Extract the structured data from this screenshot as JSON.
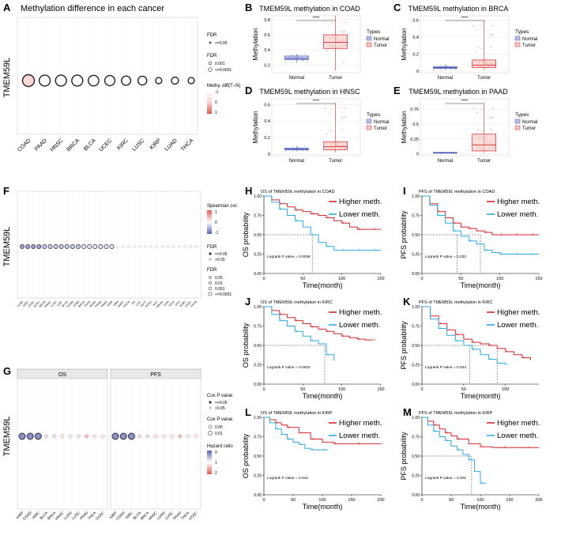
{
  "colors": {
    "grid": "#e6e6e6",
    "normal_fill": "#b9bde6",
    "normal_stroke": "#4b5bb4",
    "tumor_fill": "#f6c9c4",
    "tumor_stroke": "#d7262a",
    "higher": "#d7262a",
    "lower": "#29abe2",
    "ring": "#222222",
    "pos_blue": "#5a63b8",
    "neg_red": "#e8564f",
    "sig_col": "#333333",
    "nonsig_col": "#bdbdbd"
  },
  "panelA": {
    "letter": "A",
    "title": "Methylation difference in each cancer",
    "ylabel": "TMEM59L",
    "legend_fdr1_title": "FDR",
    "legend_fdr1_items": [
      "<=0.05"
    ],
    "legend_fdr2_title": "FDR",
    "legend_fdr2_items": [
      "0.001",
      "<=0.0001"
    ],
    "legend_grad_title": "Methy. diff(T–N)",
    "legend_grad_ticks": [
      "-1",
      "0",
      "1"
    ]
  },
  "panelF": {
    "letter": "F",
    "ylabel": "TMEM59L",
    "legend_spear_title": "Spearman cor.",
    "legend_spear_ticks": [
      "1",
      "0",
      "-1"
    ],
    "legend_fdr1_title": "FDR",
    "legend_fdr1_items": [
      "<=0.05",
      ">0.05"
    ],
    "legend_fdr2_title": "FDR",
    "legend_fdr2_items": [
      "0.05",
      "0.01",
      "0.001",
      "<=0.0001"
    ]
  },
  "panelG": {
    "letter": "G",
    "ylabel": "TMEM59L",
    "facet_os": "OS",
    "facet_pfs": "PFS",
    "legend_cox1_title": "Cox P value",
    "legend_cox1_items": [
      "<=0.05",
      ">0.05"
    ],
    "legend_cox2_title": "Cox P value",
    "legend_cox2_items": [
      "0.05",
      "0.01"
    ],
    "legend_hr_title": "Hazard ratio",
    "legend_hr_ticks": [
      "0",
      "1",
      "2"
    ]
  },
  "chart_data": [
    {
      "id": "A",
      "type": "scatter",
      "title": "Methylation difference in each cancer",
      "categories": [
        "COAD",
        "PAAD",
        "HNSC",
        "BRCA",
        "BLCA",
        "UCEC",
        "KIRC",
        "LUSC",
        "KIRP",
        "LUAD",
        "THCA"
      ],
      "methy_diff": [
        0.3,
        0.0,
        0.0,
        0.0,
        0.0,
        0.0,
        0.0,
        0.0,
        0.0,
        0.0,
        0.0
      ],
      "size_rank": [
        1.0,
        0.9,
        0.9,
        0.9,
        0.85,
        0.8,
        0.7,
        0.65,
        0.35,
        0.45,
        0.35
      ],
      "ylabel": "TMEM59L"
    },
    {
      "id": "B",
      "type": "boxplot",
      "title": "TMEM59L methylation in COAD",
      "significance": "****",
      "ylabel": "Methylation",
      "groups": [
        "Normal",
        "Tumor"
      ],
      "normal": {
        "min": 0.23,
        "q1": 0.27,
        "median": 0.29,
        "q3": 0.32,
        "max": 0.35
      },
      "tumor": {
        "min": 0.13,
        "q1": 0.42,
        "median": 0.5,
        "q3": 0.6,
        "max": 0.85
      },
      "ylim": [
        0.1,
        0.85
      ],
      "yticks": [
        0.2,
        0.4,
        0.6,
        0.8
      ],
      "legend_title": "Types",
      "legend": [
        "Normal",
        "Tumor"
      ]
    },
    {
      "id": "C",
      "type": "boxplot",
      "title": "TMEM59L methylation in BRCA",
      "significance": "****",
      "ylabel": "Methylation",
      "groups": [
        "Normal",
        "Tumor"
      ],
      "normal": {
        "min": 0.01,
        "q1": 0.03,
        "median": 0.04,
        "q3": 0.05,
        "max": 0.08
      },
      "tumor": {
        "min": 0.01,
        "q1": 0.04,
        "median": 0.07,
        "q3": 0.13,
        "max": 0.6
      },
      "ylim": [
        -0.02,
        0.65
      ],
      "yticks": [
        0.0,
        0.2,
        0.4,
        0.6
      ],
      "legend_title": "Types",
      "legend": [
        "Normal",
        "Tumor"
      ]
    },
    {
      "id": "D",
      "type": "boxplot",
      "title": "TMEM59L methylation in HNSC",
      "significance": "****",
      "ylabel": "Methylation",
      "groups": [
        "Normal",
        "Tumor"
      ],
      "normal": {
        "min": 0.03,
        "q1": 0.05,
        "median": 0.06,
        "q3": 0.07,
        "max": 0.1
      },
      "tumor": {
        "min": 0.02,
        "q1": 0.05,
        "median": 0.09,
        "q3": 0.15,
        "max": 0.62
      },
      "ylim": [
        -0.02,
        0.67
      ],
      "yticks": [
        0.0,
        0.2,
        0.4,
        0.6
      ],
      "legend_title": "Types",
      "legend": [
        "Normal",
        "Tumor"
      ]
    },
    {
      "id": "E",
      "type": "boxplot",
      "title": "TMEM59L methylation in PAAD",
      "significance": "****",
      "ylabel": "Methylation",
      "groups": [
        "Normal",
        "Tumor"
      ],
      "normal": {
        "min": 0.01,
        "q1": 0.015,
        "median": 0.02,
        "q3": 0.025,
        "max": 0.03
      },
      "tumor": {
        "min": 0.02,
        "q1": 0.05,
        "median": 0.15,
        "q3": 0.33,
        "max": 0.85
      },
      "ylim": [
        -0.03,
        0.92
      ],
      "yticks": [
        0.0,
        0.25,
        0.5,
        0.75
      ],
      "legend_title": "Types",
      "legend": [
        "Normal",
        "Tumor"
      ]
    },
    {
      "id": "F",
      "type": "scatter",
      "categories": [
        "LUAD",
        "KIRC",
        "CESC",
        "UCEC",
        "SKCM",
        "HNSC",
        "LUSC",
        "LIHC",
        "BLCA",
        "COAD",
        "STAD",
        "BRCA",
        "THCA",
        "READ",
        "PRAD",
        "PAAD",
        "KIRP",
        "GBM",
        "SARC",
        "ESCA",
        "OV",
        "LGG",
        "TGCT",
        "PCPG",
        "ACC",
        "MESO",
        "UVM",
        "KICH",
        "UCS",
        "DLBC",
        "CHOL",
        "THYM"
      ],
      "spearman": [
        0.5,
        0.45,
        0.4,
        0.35,
        0.3,
        0.3,
        0.25,
        0.2,
        0.2,
        0.15,
        0.15,
        0.1,
        0.1,
        0.1,
        0.05,
        0.05,
        0.05,
        0,
        0,
        0,
        0,
        0,
        0,
        0,
        0,
        0,
        0,
        0,
        0,
        0,
        0,
        0
      ],
      "significant": [
        true,
        true,
        true,
        true,
        true,
        true,
        true,
        true,
        true,
        true,
        true,
        true,
        true,
        true,
        true,
        true,
        true,
        false,
        false,
        false,
        false,
        false,
        false,
        false,
        false,
        false,
        false,
        false,
        false,
        false,
        false,
        false
      ],
      "ylabel": "TMEM59L"
    },
    {
      "id": "G",
      "type": "scatter",
      "facets": [
        {
          "name": "OS",
          "categories": [
            "KIRP",
            "COAD",
            "KIRC",
            "BLCA",
            "BRCA",
            "HNSC",
            "LUAD",
            "LUSC",
            "PAAD",
            "THCA",
            "UCEC"
          ],
          "hazard_ratio": [
            0.3,
            0.35,
            0.4,
            0.9,
            0.95,
            1.0,
            1.0,
            1.0,
            1.3,
            1.05,
            1.1
          ],
          "significant": [
            true,
            true,
            true,
            false,
            false,
            false,
            false,
            false,
            false,
            false,
            false
          ]
        },
        {
          "name": "PFS",
          "categories": [
            "KIRP",
            "COAD",
            "KIRC",
            "BLCA",
            "BRCA",
            "HNSC",
            "LUAD",
            "LUSC",
            "PAAD",
            "THCA",
            "UCEC"
          ],
          "hazard_ratio": [
            0.3,
            0.35,
            0.4,
            0.9,
            0.95,
            1.0,
            1.0,
            1.0,
            1.2,
            1.05,
            1.1
          ],
          "significant": [
            true,
            true,
            true,
            false,
            false,
            false,
            false,
            false,
            false,
            false,
            false
          ]
        }
      ],
      "ylabel": "TMEM59L"
    },
    {
      "id": "H",
      "type": "line",
      "title": "OS of TMEM59L methylation in COAD",
      "pvalue_text": "Logrank P value = 0.0036",
      "xlabel": "Time(month)",
      "ylabel": "OS probability",
      "xlim": [
        0,
        150
      ],
      "xticks": [
        0,
        50,
        100,
        150
      ],
      "yticks": [
        0,
        0.25,
        0.5,
        0.75,
        1.0
      ],
      "median_lines": [
        62
      ],
      "series": [
        {
          "name": "Higher meth.",
          "x": [
            0,
            10,
            20,
            30,
            40,
            50,
            60,
            70,
            80,
            90,
            100,
            110,
            120,
            130,
            140,
            150
          ],
          "y": [
            1.0,
            0.95,
            0.9,
            0.86,
            0.82,
            0.8,
            0.77,
            0.75,
            0.72,
            0.68,
            0.65,
            0.6,
            0.57,
            0.57,
            0.57,
            0.57
          ]
        },
        {
          "name": "Lower meth.",
          "x": [
            0,
            10,
            20,
            30,
            40,
            50,
            60,
            70,
            80,
            90,
            100,
            110,
            120,
            130,
            140,
            150
          ],
          "y": [
            1.0,
            0.92,
            0.83,
            0.75,
            0.68,
            0.6,
            0.5,
            0.4,
            0.35,
            0.3,
            0.3,
            0.3,
            0.3,
            0.3,
            0.3,
            0.3
          ]
        }
      ]
    },
    {
      "id": "I",
      "type": "line",
      "title": "PFS of TMEM59L methylation in COAD",
      "pvalue_text": "Logrank P value = 0.032",
      "xlabel": "Time(month)",
      "ylabel": "PFS probability",
      "xlim": [
        0,
        150
      ],
      "xticks": [
        0,
        50,
        100,
        150
      ],
      "yticks": [
        0,
        0.25,
        0.5,
        0.75,
        1.0
      ],
      "median_lines": [
        45,
        75
      ],
      "series": [
        {
          "name": "Higher meth.",
          "x": [
            0,
            10,
            20,
            30,
            40,
            50,
            60,
            70,
            80,
            90,
            100,
            110,
            120,
            130,
            140,
            150
          ],
          "y": [
            1.0,
            0.9,
            0.8,
            0.72,
            0.65,
            0.6,
            0.58,
            0.55,
            0.53,
            0.5,
            0.5,
            0.5,
            0.5,
            0.5,
            0.5,
            0.5
          ]
        },
        {
          "name": "Lower meth.",
          "x": [
            0,
            10,
            20,
            30,
            40,
            50,
            60,
            70,
            80,
            90,
            100,
            110,
            120,
            130,
            140,
            150
          ],
          "y": [
            1.0,
            0.88,
            0.75,
            0.65,
            0.55,
            0.48,
            0.42,
            0.38,
            0.3,
            0.27,
            0.25,
            0.25,
            0.25,
            0.25,
            0.25,
            0.25
          ]
        }
      ]
    },
    {
      "id": "J",
      "type": "line",
      "title": "OS of TMEM59L methylation in KIRC",
      "pvalue_text": "Logrank P value = 0.0032",
      "xlabel": "Time(month)",
      "ylabel": "OS probability",
      "xlim": [
        0,
        150
      ],
      "xticks": [
        0,
        50,
        100,
        150
      ],
      "yticks": [
        0,
        0.25,
        0.5,
        0.75,
        1.0
      ],
      "median_lines": [
        78
      ],
      "series": [
        {
          "name": "Higher meth.",
          "x": [
            0,
            10,
            20,
            30,
            40,
            50,
            60,
            70,
            80,
            90,
            100,
            110,
            120,
            130,
            140
          ],
          "y": [
            1.0,
            0.95,
            0.9,
            0.86,
            0.82,
            0.78,
            0.74,
            0.71,
            0.68,
            0.65,
            0.62,
            0.6,
            0.58,
            0.57,
            0.57
          ]
        },
        {
          "name": "Lower meth.",
          "x": [
            0,
            10,
            20,
            30,
            40,
            50,
            60,
            70,
            80,
            90
          ],
          "y": [
            1.0,
            0.9,
            0.82,
            0.75,
            0.68,
            0.62,
            0.56,
            0.52,
            0.38,
            0.3
          ]
        }
      ]
    },
    {
      "id": "K",
      "type": "line",
      "title": "PFS of TMEM59L methylation in KIRC",
      "pvalue_text": "Logrank P value = 0.024",
      "xlabel": "Time(month)",
      "ylabel": "PFS probability",
      "xlim": [
        0,
        140
      ],
      "xticks": [
        0,
        50,
        100
      ],
      "yticks": [
        0,
        0.25,
        0.5,
        0.75,
        1.0
      ],
      "median_lines": [
        57,
        90
      ],
      "series": [
        {
          "name": "Higher meth.",
          "x": [
            0,
            10,
            20,
            30,
            40,
            50,
            60,
            70,
            80,
            90,
            100,
            110,
            120,
            130
          ],
          "y": [
            1.0,
            0.88,
            0.78,
            0.7,
            0.64,
            0.58,
            0.54,
            0.52,
            0.5,
            0.46,
            0.42,
            0.38,
            0.34,
            0.31
          ]
        },
        {
          "name": "Lower meth.",
          "x": [
            0,
            10,
            20,
            30,
            40,
            50,
            60,
            70,
            80,
            90,
            100
          ],
          "y": [
            1.0,
            0.84,
            0.72,
            0.63,
            0.56,
            0.5,
            0.45,
            0.38,
            0.32,
            0.27,
            0.25
          ]
        }
      ]
    },
    {
      "id": "L",
      "type": "line",
      "title": "OS of TMEM59L methylation in KIRP",
      "pvalue_text": "Logrank P value = 0.042",
      "xlabel": "Time(month)",
      "ylabel": "OS probability",
      "xlim": [
        0,
        200
      ],
      "xticks": [
        0,
        50,
        100,
        150,
        200
      ],
      "yticks": [
        0,
        0.25,
        0.5,
        0.75,
        1.0
      ],
      "median_lines": [],
      "series": [
        {
          "name": "Higher meth.",
          "x": [
            0,
            10,
            20,
            30,
            40,
            60,
            80,
            100,
            120,
            140,
            160,
            180,
            200
          ],
          "y": [
            1.0,
            0.97,
            0.93,
            0.9,
            0.87,
            0.8,
            0.72,
            0.68,
            0.66,
            0.66,
            0.66,
            0.66,
            0.66
          ]
        },
        {
          "name": "Lower meth.",
          "x": [
            0,
            10,
            20,
            30,
            40,
            50,
            60,
            70,
            80,
            90,
            100,
            110
          ],
          "y": [
            1.0,
            0.93,
            0.85,
            0.78,
            0.72,
            0.68,
            0.65,
            0.6,
            0.58,
            0.58,
            0.58,
            0.58
          ]
        }
      ]
    },
    {
      "id": "M",
      "type": "line",
      "title": "PFS of TMEM59L methylation in KIRP",
      "pvalue_text": "Logrank P value = 0.001",
      "xlabel": "Time(month)",
      "ylabel": "PFS probability",
      "xlim": [
        0,
        200
      ],
      "xticks": [
        0,
        50,
        100,
        150,
        200
      ],
      "yticks": [
        0,
        0.25,
        0.5,
        0.75,
        1.0
      ],
      "median_lines": [
        85
      ],
      "series": [
        {
          "name": "Higher meth.",
          "x": [
            0,
            10,
            20,
            30,
            40,
            50,
            60,
            80,
            100,
            120,
            140,
            160,
            180,
            200
          ],
          "y": [
            1.0,
            0.95,
            0.9,
            0.85,
            0.8,
            0.76,
            0.72,
            0.66,
            0.62,
            0.61,
            0.61,
            0.61,
            0.61,
            0.61
          ]
        },
        {
          "name": "Lower meth.",
          "x": [
            0,
            10,
            20,
            30,
            40,
            50,
            60,
            70,
            80,
            90,
            100,
            110
          ],
          "y": [
            1.0,
            0.9,
            0.82,
            0.75,
            0.7,
            0.63,
            0.58,
            0.52,
            0.45,
            0.3,
            0.15,
            0.15
          ]
        }
      ]
    }
  ]
}
